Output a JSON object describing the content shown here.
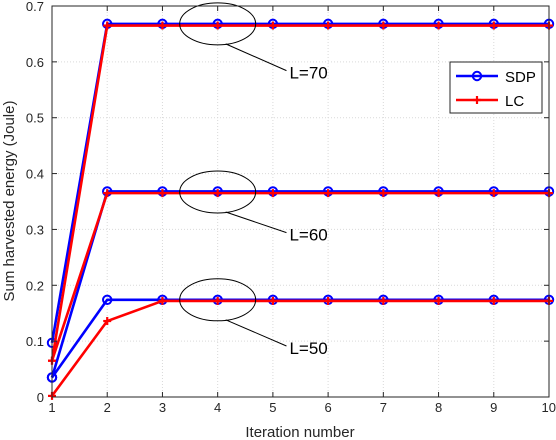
{
  "chart_data": {
    "type": "line",
    "title": "",
    "xlabel": "Iteration number",
    "ylabel": "Sum harvested energy (Joule)",
    "xlim": [
      1,
      10
    ],
    "ylim": [
      0,
      0.7
    ],
    "xticks": [
      "1",
      "2",
      "3",
      "4",
      "5",
      "6",
      "7",
      "8",
      "9",
      "10"
    ],
    "yticks": [
      "0",
      "0.1",
      "0.2",
      "0.3",
      "0.4",
      "0.5",
      "0.6",
      "0.7"
    ],
    "grid": true,
    "legend_position": "upper-right",
    "x": [
      1,
      2,
      3,
      4,
      5,
      6,
      7,
      8,
      9,
      10
    ],
    "series": [
      {
        "name": "SDP",
        "group": "L=70",
        "color": "#0000ff",
        "marker": "circle",
        "values": [
          0.097,
          0.668,
          0.668,
          0.668,
          0.668,
          0.668,
          0.668,
          0.668,
          0.668,
          0.668
        ]
      },
      {
        "name": "LC",
        "group": "L=70",
        "color": "#ff0000",
        "marker": "plus",
        "values": [
          0.065,
          0.665,
          0.665,
          0.665,
          0.665,
          0.665,
          0.665,
          0.665,
          0.665,
          0.665
        ]
      },
      {
        "name": "SDP",
        "group": "L=60",
        "color": "#0000ff",
        "marker": "circle",
        "values": [
          0.035,
          0.368,
          0.368,
          0.368,
          0.368,
          0.368,
          0.368,
          0.368,
          0.368,
          0.368
        ]
      },
      {
        "name": "LC",
        "group": "L=60",
        "color": "#ff0000",
        "marker": "plus",
        "values": [
          0.065,
          0.365,
          0.365,
          0.365,
          0.365,
          0.365,
          0.365,
          0.365,
          0.365,
          0.365
        ]
      },
      {
        "name": "SDP",
        "group": "L=50",
        "color": "#0000ff",
        "marker": "circle",
        "values": [
          0.035,
          0.174,
          0.174,
          0.174,
          0.174,
          0.174,
          0.174,
          0.174,
          0.174,
          0.174
        ]
      },
      {
        "name": "LC",
        "group": "L=50",
        "color": "#ff0000",
        "marker": "plus",
        "values": [
          0.002,
          0.136,
          0.172,
          0.172,
          0.172,
          0.172,
          0.172,
          0.172,
          0.172,
          0.172
        ]
      }
    ],
    "legend": [
      {
        "label": "SDP",
        "color": "#0000ff",
        "marker": "circle"
      },
      {
        "label": "LC",
        "color": "#ff0000",
        "marker": "plus"
      }
    ],
    "annotations": [
      {
        "text": "L=70",
        "ellipse_at": [
          4,
          0.668
        ],
        "label_at": [
          5.3,
          0.57
        ]
      },
      {
        "text": "L=60",
        "ellipse_at": [
          4,
          0.367
        ],
        "label_at": [
          5.3,
          0.28
        ]
      },
      {
        "text": "L=50",
        "ellipse_at": [
          4,
          0.174
        ],
        "label_at": [
          5.3,
          0.077
        ]
      }
    ]
  }
}
